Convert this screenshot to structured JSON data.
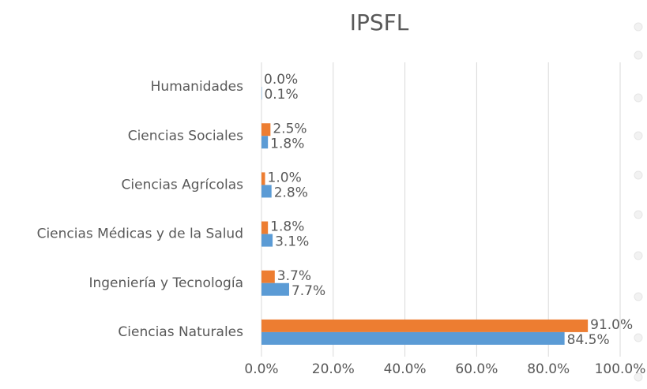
{
  "chart_data": {
    "type": "hbar",
    "title": "IPSFL",
    "categories": [
      "Humanidades",
      "Ciencias Sociales",
      "Ciencias Agrícolas",
      "Ciencias Médicas y de la Salud",
      "Ingeniería y Tecnología",
      "Ciencias Naturales"
    ],
    "series": [
      {
        "color": "#ed7d31",
        "values": [
          0,
          2.5,
          1,
          1.8,
          3.7,
          91
        ],
        "value_labels": [
          "0.0%",
          "2.5%",
          "1.0%",
          "1.8%",
          "3.7%",
          "91.0%"
        ]
      },
      {
        "color": "#5b9bd5",
        "values": [
          0.1,
          1.8,
          2.8,
          3.1,
          7.7,
          84.5
        ],
        "value_labels": [
          "0.1%",
          "1.8%",
          "2.8%",
          "3.1%",
          "7.7%",
          "84.5%"
        ]
      }
    ],
    "xlim": [
      0,
      100
    ],
    "xticks": [
      {
        "value": 0,
        "label": "0.0%"
      },
      {
        "value": 20,
        "label": "20.0%"
      },
      {
        "value": 40,
        "label": "40.0%"
      },
      {
        "value": 60,
        "label": "60.0%"
      },
      {
        "value": 80,
        "label": "80.0%"
      },
      {
        "value": 100,
        "label": "100.0%"
      }
    ],
    "grid": true
  }
}
